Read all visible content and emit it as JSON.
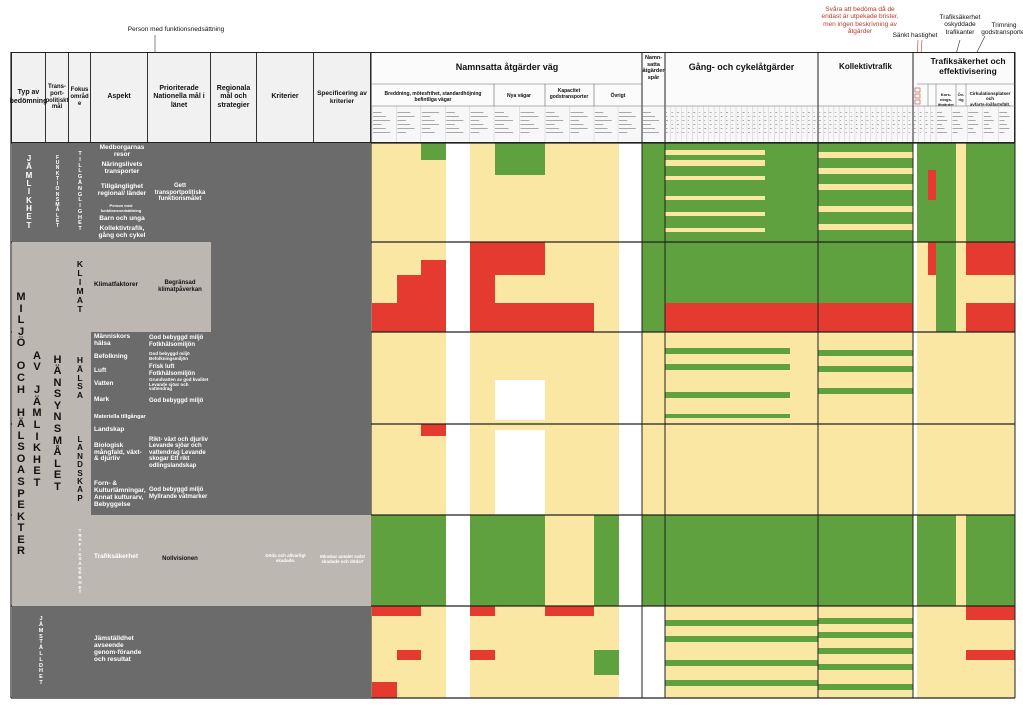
{
  "header": {
    "typ": "Typ av bedömning",
    "transportpolitiskt_mal": "Trans-port-politiskt mål",
    "fokusomrade": "Fokus områd e",
    "aspekt": "Aspekt",
    "prioriterade": "Prioriterade Nationella mål i länet",
    "regionala": "Regionala mål och strategier",
    "kriterier": "Kriterier",
    "specificering": "Specificering av kriterier"
  },
  "groups": {
    "namnsatta_vag": "Namnsatta åtgärder väg",
    "namnsatta_spar": "Namn-satta åtgärder spår",
    "gang_cykel": "Gång- och cykelåtgärder",
    "kollektivtrafik": "Kollektivtrafik",
    "trafiksakerhet": "Trafiksäkerhet och effektivisering"
  },
  "subgroups": {
    "breddning": "Breddning, mötesfrihet, standardhöjning befintliga vägar",
    "nya_vagar": "Nya vägar",
    "kapacitet": "Kapacitet godstransporter",
    "ovrigt": "Övrigt"
  },
  "ts_subheaders": {
    "korsningsatgarder": "Kors-nings-åtgärder",
    "ovrigt": "Öv-rig",
    "cirkulation": "Cirkulationsplatser och avfarts-/påfartsfält."
  },
  "annotations": {
    "person": "Person med funktionsnedsättning",
    "svara": "Svåra att bedöma då de endast är utpekade brister, men ingen beskrivning av åtgärder",
    "sankt": "Sänkt hastighet",
    "oskyddade": "Trafiksäkerhet oskyddade trafikanter",
    "trimning": "Trimning godstransporter"
  },
  "typ_labels": {
    "jamlikhet": [
      "J",
      "Ä",
      "M",
      "L",
      "I",
      "K",
      "H",
      "E",
      "T"
    ],
    "miljo": [
      "M",
      "I",
      "L",
      "J",
      "Ö",
      "",
      "O",
      "C",
      "H",
      "",
      "H",
      "Ä",
      "L",
      "S",
      "O",
      "A",
      "S",
      "P",
      "E",
      "K",
      "T",
      "E",
      "R"
    ],
    "av_jamlikhet": [
      "A",
      "V",
      "",
      "J",
      "Ä",
      "M",
      "L",
      "I",
      "K",
      "H",
      "E",
      "T"
    ],
    "jamstalldhet": [
      "J",
      "Ä",
      "M",
      "S",
      "T",
      "Ä",
      "L",
      "L",
      "D",
      "H",
      "E",
      "T"
    ]
  },
  "mal_labels": {
    "funktionsmalet": [
      "F",
      "U",
      "N",
      "K",
      "T",
      "I",
      "O",
      "N",
      "S",
      "M",
      "Å",
      "L",
      "E",
      "T"
    ],
    "hansynsmalet": [
      "H",
      "Ä",
      "N",
      "S",
      "Y",
      "N",
      "S",
      "M",
      "Å",
      "L",
      "E",
      "T"
    ]
  },
  "fokus_labels": {
    "tillganglighet": [
      "T",
      "I",
      "L",
      "L",
      "G",
      "Ä",
      "N",
      "G",
      "L",
      "I",
      "G",
      "H",
      "E",
      "T"
    ],
    "klimat": [
      "K",
      "L",
      "I",
      "M",
      "A",
      "T"
    ],
    "halsa": [
      "H",
      "Ä",
      "L",
      "S",
      "A"
    ],
    "landskap": [
      "L",
      "A",
      "N",
      "D",
      "S",
      "K",
      "A",
      "P"
    ],
    "trafiksakerhet": [
      "T",
      "R",
      "A",
      "F",
      "I",
      "K",
      "S",
      "Ä",
      "K",
      "E",
      "R",
      "H",
      "E",
      "T"
    ]
  },
  "aspects": [
    "Medborgarnas resor",
    "Näringslivets transporter",
    "Tillgänglighet regional/ länder",
    "Person med funktionsnedsättning",
    "Barn och unga",
    "Kollektivtrafik, gång och cykel",
    "Klimatfaktorer",
    "Människors hälsa",
    "Befolkning",
    "Luft",
    "Vatten",
    "Mark",
    "Materiella tillgångar",
    "Landskap",
    "Biologisk mångfald, växt- & djurliv",
    "Forn- & Kulturlämningar, Annat kulturarv, Bebyggelse",
    "Trafiksäkerhet",
    "Jämställdhet avseende genom-förande och resultat"
  ],
  "goals": {
    "funktion": "Gett transportpolitiska funktionsmålet",
    "klimat": "Begränsad klimatpåverkan",
    "halsa": "God bebyggd miljö Fotkhälsomiljön",
    "befolkning": "God bebyggd miljö Befolkningsmiljön",
    "luft": "Frisk luft Fotkhälsomiljön",
    "vatten": "Grundvatten av god kvalitet Levande sjöar och vattendrag",
    "mark": "God bebyggd miljö",
    "biologisk": "Rikt- växt och djurliv Levande sjöar och vattendrag Levande skogar Ett rikt odlingslandskap",
    "forn": "God bebyggd miljö Myllrande våtmarker",
    "ts": "Nollvisionen"
  },
  "ts_row_texts": {
    "kriterier": "Döda och allvarligt skadade.",
    "specificering": "Minskar antalet svårt skadade och döda?"
  },
  "colors": {
    "green": "#5fa03f",
    "yellow": "#fbe7a4",
    "red": "#e43a30",
    "white": "#ffffff",
    "dark_gray": "#6b6b6b",
    "mid_gray": "#bdb7b2",
    "header_gray": "#f1f1f1"
  }
}
